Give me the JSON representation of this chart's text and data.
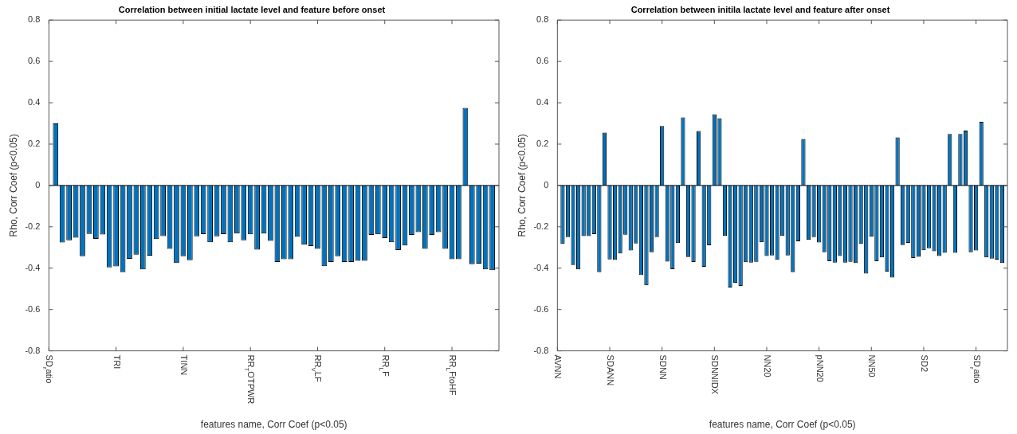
{
  "chart_data": [
    {
      "type": "bar",
      "title": "Correlation between initial lactate level and feature before onset",
      "xlabel": "features name, Corr Coef (p<0.05)",
      "ylabel": "Rho, Corr Coef (p<0.05)",
      "color": "#0072bd",
      "categories": [
        "SD$_{r}$atio",
        null,
        null,
        null,
        null,
        null,
        null,
        null,
        null,
        null,
        "TRI",
        null,
        null,
        null,
        null,
        null,
        null,
        null,
        null,
        null,
        "TINN",
        null,
        null,
        null,
        null,
        null,
        null,
        null,
        null,
        null,
        "RR$_{T}$OTPWR",
        null,
        null,
        null,
        null,
        null,
        null,
        null,
        null,
        null,
        "RR$_{V}$LF",
        null,
        null,
        null,
        null,
        null,
        null,
        null,
        null,
        null,
        "RR$_{L}$F",
        null,
        null,
        null,
        null,
        null,
        null,
        null,
        null,
        null,
        "RR$_{L}$FtoHF",
        null,
        null,
        null,
        null,
        null,
        null
      ],
      "values": [
        null,
        0.3,
        -0.276,
        -0.265,
        -0.253,
        -0.342,
        -0.234,
        -0.258,
        -0.237,
        -0.396,
        -0.391,
        -0.419,
        -0.355,
        -0.335,
        -0.406,
        -0.339,
        -0.259,
        -0.245,
        -0.307,
        -0.375,
        -0.342,
        -0.361,
        -0.246,
        -0.235,
        -0.275,
        -0.246,
        -0.235,
        -0.275,
        -0.232,
        -0.265,
        -0.236,
        -0.31,
        -0.232,
        -0.268,
        -0.37,
        -0.357,
        -0.357,
        -0.248,
        -0.286,
        -0.293,
        -0.307,
        -0.39,
        -0.37,
        -0.342,
        -0.37,
        -0.37,
        -0.364,
        -0.364,
        -0.239,
        -0.236,
        -0.255,
        -0.275,
        -0.312,
        -0.29,
        -0.239,
        -0.226,
        -0.307,
        -0.239,
        -0.226,
        -0.307,
        -0.357,
        -0.357,
        0.375,
        -0.381,
        -0.378,
        -0.406,
        -0.41
      ],
      "ylim": [
        -0.8,
        0.8
      ],
      "yticks": [
        -0.8,
        -0.6,
        -0.4,
        -0.2,
        0,
        0.2,
        0.4,
        0.6,
        0.8
      ],
      "ref_lines": [
        {
          "axis": "y",
          "value": 0
        }
      ]
    },
    {
      "type": "bar",
      "title": "Correlation between initila lactate level and feature after onset",
      "xlabel": "features name, Corr Coef (p<0.05)",
      "ylabel": "Rho, Corr Coef (p<0.05)",
      "color": "#0072bd",
      "categories": [
        "AVNN",
        null,
        null,
        null,
        null,
        null,
        null,
        null,
        null,
        null,
        "SDANN",
        null,
        null,
        null,
        null,
        null,
        null,
        null,
        null,
        null,
        "SDNN",
        null,
        null,
        null,
        null,
        null,
        null,
        null,
        null,
        null,
        "SDNNIDX",
        null,
        null,
        null,
        null,
        null,
        null,
        null,
        null,
        null,
        "NN20",
        null,
        null,
        null,
        null,
        null,
        null,
        null,
        null,
        null,
        "pNN20",
        null,
        null,
        null,
        null,
        null,
        null,
        null,
        null,
        null,
        "NN50",
        null,
        null,
        null,
        null,
        null,
        null,
        null,
        null,
        null,
        "SD2",
        null,
        null,
        null,
        null,
        null,
        null,
        null,
        null,
        null,
        "SD$_{r}$atio",
        null,
        null,
        null,
        null,
        null
      ],
      "values": [
        null,
        -0.283,
        -0.25,
        -0.385,
        -0.406,
        -0.245,
        -0.245,
        -0.235,
        -0.419,
        0.256,
        -0.358,
        -0.36,
        -0.329,
        -0.238,
        -0.314,
        -0.281,
        -0.433,
        -0.483,
        -0.323,
        -0.25,
        0.288,
        -0.368,
        -0.405,
        -0.279,
        0.329,
        -0.346,
        -0.37,
        0.263,
        -0.393,
        -0.289,
        0.344,
        0.325,
        -0.244,
        -0.493,
        -0.47,
        -0.486,
        -0.371,
        -0.373,
        -0.369,
        -0.275,
        -0.341,
        -0.338,
        -0.36,
        -0.244,
        -0.338,
        -0.419,
        -0.27,
        0.225,
        -0.263,
        -0.25,
        -0.276,
        -0.323,
        -0.366,
        -0.373,
        -0.341,
        -0.373,
        -0.369,
        -0.375,
        -0.283,
        -0.426,
        -0.248,
        -0.366,
        -0.348,
        -0.416,
        -0.445,
        0.233,
        -0.288,
        -0.278,
        -0.351,
        -0.345,
        -0.313,
        -0.304,
        -0.318,
        -0.341,
        -0.326,
        0.249,
        -0.326,
        0.249,
        0.265,
        -0.323,
        -0.314,
        0.308,
        -0.348,
        -0.354,
        -0.359,
        -0.375
      ],
      "ylim": [
        -0.8,
        0.8
      ],
      "yticks": [
        -0.8,
        -0.6,
        -0.4,
        -0.2,
        0,
        0.2,
        0.4,
        0.6,
        0.8
      ],
      "ref_lines": [
        {
          "axis": "y",
          "value": 0
        }
      ]
    }
  ]
}
